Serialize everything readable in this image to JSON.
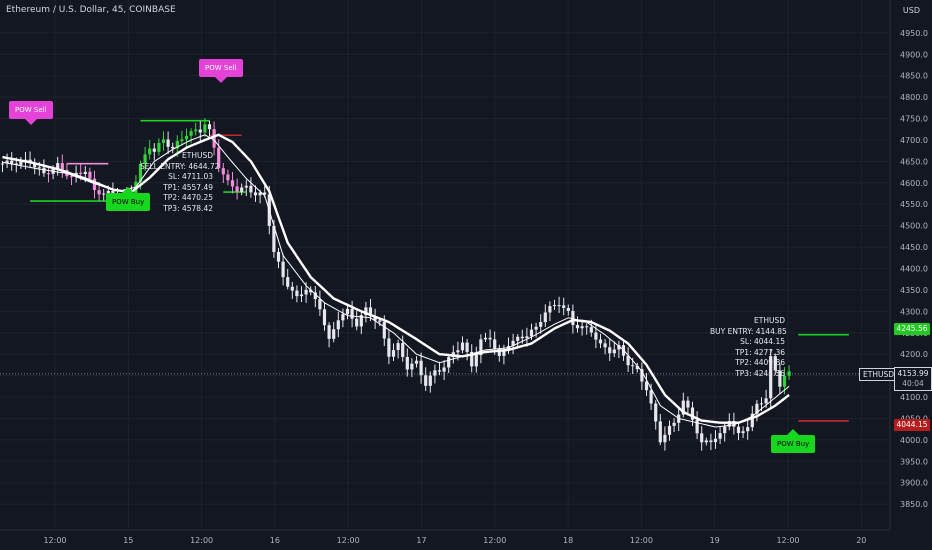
{
  "header": {
    "title": "Ethereum / U.S. Dollar, 45, COINBASE",
    "currency": "USD"
  },
  "colors": {
    "background": "#131722",
    "up": "#33d43b",
    "down": "#f08fd8",
    "neutral": "#e6e8ee",
    "sell_tag": "#e542d8",
    "buy_tag": "#16d61e",
    "sl_line": "#c62828",
    "tp_line": "#1fd31f"
  },
  "chart_data": {
    "type": "candlestick",
    "symbol": "ETHUSD",
    "y_ticks": [
      3850,
      3900,
      3950,
      4000,
      4050,
      4100,
      4150,
      4200,
      4250,
      4300,
      4350,
      4400,
      4450,
      4500,
      4550,
      4600,
      4650,
      4700,
      4750,
      4800,
      4850,
      4900,
      4950
    ],
    "ylim": [
      3820,
      4980
    ],
    "x_tick_labels": [
      "12:00",
      "15",
      "12:00",
      "16",
      "12:00",
      "17",
      "12:00",
      "18",
      "12:00",
      "19",
      "12:00",
      "20"
    ],
    "grid": true,
    "last_price": "4153.99",
    "countdown": "40:04",
    "close_path": [
      [
        0,
        4645
      ],
      [
        6,
        4650
      ],
      [
        9,
        4620
      ],
      [
        12,
        4640
      ],
      [
        15,
        4612
      ],
      [
        18,
        4630
      ],
      [
        20,
        4580
      ],
      [
        23,
        4575
      ],
      [
        26,
        4562
      ],
      [
        28,
        4575
      ],
      [
        30,
        4640
      ],
      [
        32,
        4685
      ],
      [
        33,
        4675
      ],
      [
        35,
        4700
      ],
      [
        37,
        4680
      ],
      [
        40,
        4715
      ],
      [
        43,
        4722
      ],
      [
        44,
        4740
      ],
      [
        45,
        4720
      ],
      [
        46,
        4680
      ],
      [
        47,
        4640
      ],
      [
        49,
        4600
      ],
      [
        51,
        4585
      ],
      [
        53,
        4588
      ],
      [
        55,
        4575
      ],
      [
        57,
        4570
      ],
      [
        59,
        4440
      ],
      [
        61,
        4380
      ],
      [
        64,
        4330
      ],
      [
        66,
        4355
      ],
      [
        69,
        4310
      ],
      [
        71,
        4230
      ],
      [
        73,
        4285
      ],
      [
        75,
        4300
      ],
      [
        77,
        4270
      ],
      [
        79,
        4305
      ],
      [
        82,
        4270
      ],
      [
        84,
        4200
      ],
      [
        86,
        4220
      ],
      [
        88,
        4170
      ],
      [
        90,
        4180
      ],
      [
        92,
        4130
      ],
      [
        94,
        4160
      ],
      [
        96,
        4170
      ],
      [
        98,
        4205
      ],
      [
        100,
        4225
      ],
      [
        102,
        4175
      ],
      [
        104,
        4230
      ],
      [
        106,
        4240
      ],
      [
        108,
        4190
      ],
      [
        110,
        4225
      ],
      [
        113,
        4240
      ],
      [
        116,
        4260
      ],
      [
        118,
        4300
      ],
      [
        121,
        4320
      ],
      [
        123,
        4295
      ],
      [
        124,
        4270
      ],
      [
        126,
        4262
      ],
      [
        128,
        4255
      ],
      [
        130,
        4220
      ],
      [
        132,
        4208
      ],
      [
        134,
        4215
      ],
      [
        136,
        4180
      ],
      [
        138,
        4160
      ],
      [
        140,
        4120
      ],
      [
        141,
        4080
      ],
      [
        143,
        4000
      ],
      [
        146,
        4040
      ],
      [
        148,
        4090
      ],
      [
        150,
        4050
      ],
      [
        152,
        3990
      ],
      [
        154,
        4000
      ],
      [
        156,
        4010
      ],
      [
        158,
        4050
      ],
      [
        160,
        4010
      ],
      [
        162,
        4035
      ],
      [
        164,
        4080
      ],
      [
        166,
        4100
      ],
      [
        167,
        4190
      ],
      [
        169,
        4130
      ],
      [
        170,
        4150
      ],
      [
        171,
        4154
      ]
    ],
    "ema_fast_path": [
      [
        0,
        4648
      ],
      [
        8,
        4632
      ],
      [
        14,
        4622
      ],
      [
        20,
        4598
      ],
      [
        25,
        4580
      ],
      [
        29,
        4590
      ],
      [
        33,
        4650
      ],
      [
        37,
        4678
      ],
      [
        41,
        4700
      ],
      [
        44,
        4712
      ],
      [
        46,
        4700
      ],
      [
        49,
        4660
      ],
      [
        53,
        4610
      ],
      [
        57,
        4570
      ],
      [
        61,
        4430
      ],
      [
        66,
        4360
      ],
      [
        70,
        4320
      ],
      [
        75,
        4290
      ],
      [
        80,
        4285
      ],
      [
        85,
        4250
      ],
      [
        90,
        4200
      ],
      [
        95,
        4180
      ],
      [
        100,
        4195
      ],
      [
        105,
        4210
      ],
      [
        110,
        4215
      ],
      [
        115,
        4240
      ],
      [
        120,
        4270
      ],
      [
        123,
        4285
      ],
      [
        127,
        4275
      ],
      [
        131,
        4245
      ],
      [
        135,
        4210
      ],
      [
        139,
        4160
      ],
      [
        143,
        4080
      ],
      [
        147,
        4050
      ],
      [
        151,
        4040
      ],
      [
        155,
        4030
      ],
      [
        159,
        4035
      ],
      [
        163,
        4055
      ],
      [
        167,
        4090
      ],
      [
        171,
        4125
      ]
    ],
    "ema_slow_path": [
      [
        0,
        4660
      ],
      [
        6,
        4648
      ],
      [
        12,
        4632
      ],
      [
        18,
        4610
      ],
      [
        24,
        4584
      ],
      [
        28,
        4578
      ],
      [
        32,
        4612
      ],
      [
        36,
        4655
      ],
      [
        40,
        4682
      ],
      [
        44,
        4700
      ],
      [
        47,
        4712
      ],
      [
        50,
        4695
      ],
      [
        54,
        4650
      ],
      [
        58,
        4580
      ],
      [
        62,
        4460
      ],
      [
        67,
        4380
      ],
      [
        72,
        4330
      ],
      [
        78,
        4300
      ],
      [
        84,
        4275
      ],
      [
        90,
        4235
      ],
      [
        95,
        4200
      ],
      [
        100,
        4195
      ],
      [
        105,
        4205
      ],
      [
        110,
        4210
      ],
      [
        115,
        4225
      ],
      [
        120,
        4260
      ],
      [
        124,
        4280
      ],
      [
        128,
        4275
      ],
      [
        132,
        4255
      ],
      [
        136,
        4225
      ],
      [
        140,
        4175
      ],
      [
        144,
        4105
      ],
      [
        148,
        4065
      ],
      [
        152,
        4045
      ],
      [
        156,
        4040
      ],
      [
        160,
        4040
      ],
      [
        164,
        4055
      ],
      [
        168,
        4080
      ],
      [
        171,
        4105
      ]
    ],
    "horizontal_lines": [
      {
        "role": "sell-entry",
        "price": 4644.72,
        "x0": 14,
        "x1": 23,
        "color": "#f08fd8"
      },
      {
        "role": "tp",
        "price": 4557.49,
        "x0": 6,
        "x1": 27,
        "color": "#1fd31f"
      },
      {
        "role": "tp",
        "price": 4745,
        "x0": 30,
        "x1": 45,
        "color": "#1fd31f"
      },
      {
        "role": "sl",
        "price": 4711.03,
        "x0": 45,
        "x1": 52,
        "color": "#c62828"
      },
      {
        "role": "tp",
        "price": 4578.42,
        "x0": 48,
        "x1": 53,
        "color": "#1fd31f"
      },
      {
        "role": "buy-tp",
        "price": 4245.56,
        "x0": 173,
        "x1": 184,
        "color": "#1fd31f"
      },
      {
        "role": "buy-sl",
        "price": 4044.15,
        "x0": 173,
        "x1": 184,
        "color": "#c62828"
      }
    ]
  },
  "signals": {
    "sell": {
      "symbol": "ETHUSD",
      "entry": "SELL ENTRY: 4644.72",
      "sl": "SL: 4711.03",
      "tp1": "TP1: 4557.49",
      "tp2": "TP2: 4470.25",
      "tp3": "TP3: 4578.42"
    },
    "buy": {
      "symbol": "ETHUSD",
      "entry": "BUY ENTRY: 4144.85",
      "sl": "SL: 4044.15",
      "tp1": "TP1: 4277.36",
      "tp2": "TP2: 4409.86",
      "tp3": "TP3: 4245.56"
    }
  },
  "tags": {
    "sell1": "POW Sell",
    "sell2": "POW Sell",
    "buy1": "POW Buy",
    "buy2": "POW Buy"
  },
  "price_labels": {
    "tp": "4245.56",
    "sl": "4044.15",
    "symbol": "ETHUSD"
  }
}
